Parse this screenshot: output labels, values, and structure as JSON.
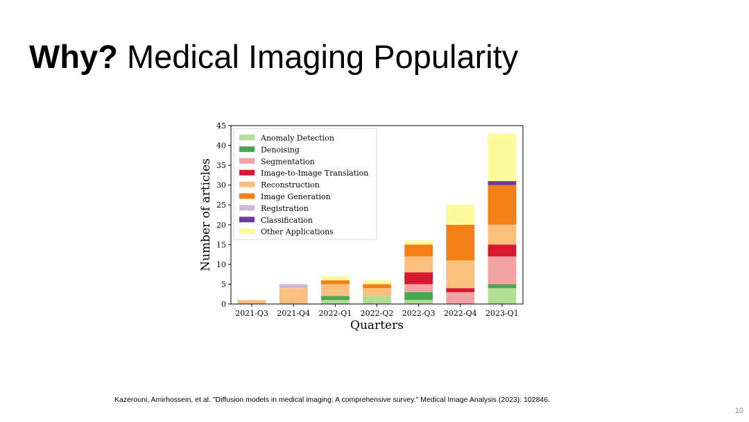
{
  "slide": {
    "title_bold": "Why?",
    "title_rest": " Medical Imaging Popularity",
    "citation": "Kazerouni, Amirhossein, et al. \"Diffusion models in medical imaging: A comprehensive survey.\" Medical Image Analysis (2023): 102846.",
    "page_number": "10"
  },
  "chart_data": {
    "type": "bar",
    "stacked": true,
    "title": "",
    "xlabel": "Quarters",
    "ylabel": "Number of articles",
    "ylim": [
      0,
      45
    ],
    "yticks": [
      0,
      5,
      10,
      15,
      20,
      25,
      30,
      35,
      40,
      45
    ],
    "grid": false,
    "legend_position": "top-left",
    "categories": [
      "2021-Q3",
      "2021-Q4",
      "2022-Q1",
      "2022-Q2",
      "2022-Q3",
      "2022-Q4",
      "2023-Q1"
    ],
    "series": [
      {
        "name": "Anomaly Detection",
        "color": "#b3de95",
        "values": [
          0,
          0,
          1,
          2,
          1,
          0,
          4
        ]
      },
      {
        "name": "Denoising",
        "color": "#4aa653",
        "values": [
          0,
          0,
          1,
          0,
          2,
          0,
          1
        ]
      },
      {
        "name": "Segmentation",
        "color": "#f4a3a5",
        "values": [
          0,
          0,
          0,
          0,
          2,
          3,
          7
        ]
      },
      {
        "name": "Image-to-Image Translation",
        "color": "#d7192f",
        "values": [
          0,
          0,
          0,
          0,
          3,
          1,
          3
        ]
      },
      {
        "name": "Reconstruction",
        "color": "#fbc07e",
        "values": [
          1,
          4,
          3,
          2,
          4,
          7,
          5
        ]
      },
      {
        "name": "Image Generation",
        "color": "#f47f17",
        "values": [
          0,
          0,
          1,
          1,
          3,
          9,
          10
        ]
      },
      {
        "name": "Registration",
        "color": "#cdb8d7",
        "values": [
          0,
          1,
          0,
          0,
          0,
          0,
          0
        ]
      },
      {
        "name": "Classification",
        "color": "#6a3d9a",
        "values": [
          0,
          0,
          0,
          0,
          0,
          0,
          1
        ]
      },
      {
        "name": "Other Applications",
        "color": "#fdfa9b",
        "values": [
          0,
          0,
          1,
          1,
          1,
          5,
          12
        ]
      }
    ]
  }
}
